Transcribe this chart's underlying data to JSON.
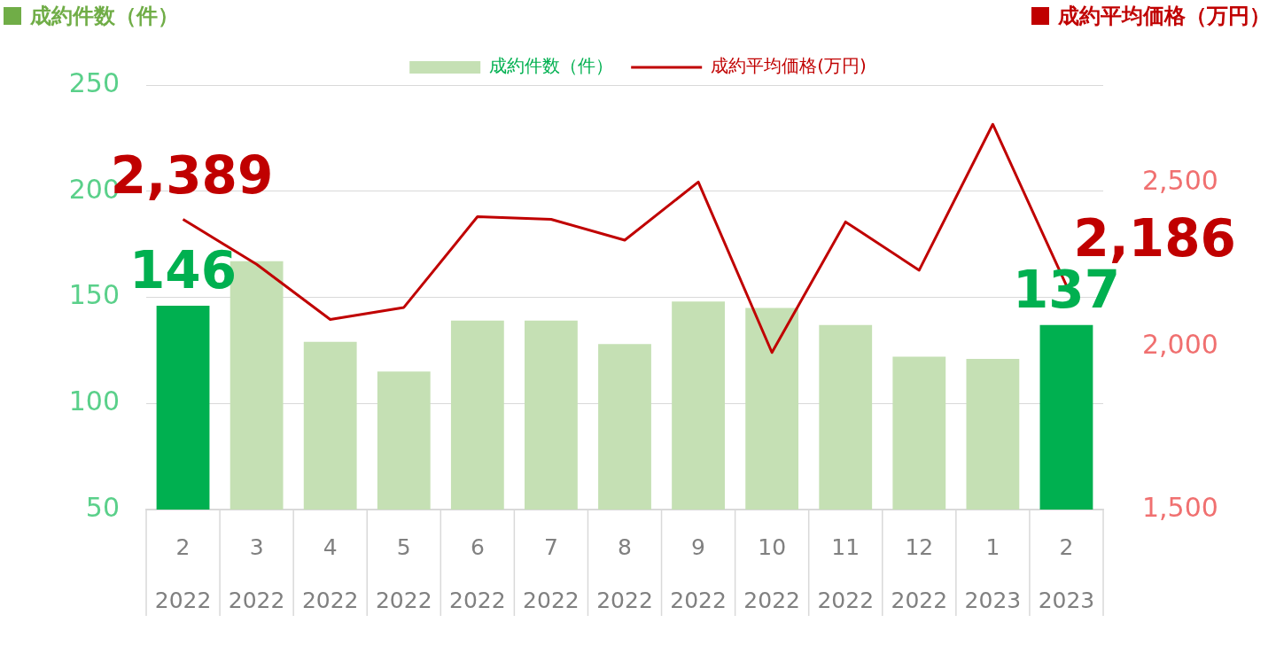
{
  "chart_data": {
    "type": "bar",
    "ylabel": "成約件数（件）",
    "y2label": "成約平均価格（万円）",
    "categories": [
      "2\n2022",
      "3\n2022",
      "4\n2022",
      "5\n2022",
      "6\n2022",
      "7\n2022",
      "8\n2022",
      "9\n2022",
      "10\n2022",
      "11\n2022",
      "12\n2022",
      "1\n2023",
      "2\n2023"
    ],
    "series": [
      {
        "name": "成約件数（件）",
        "type": "bar",
        "color": "#c5e0b4",
        "colors": [
          "#00b050",
          "#c5e0b4",
          "#c5e0b4",
          "#c5e0b4",
          "#c5e0b4",
          "#c5e0b4",
          "#c5e0b4",
          "#c5e0b4",
          "#c5e0b4",
          "#c5e0b4",
          "#c5e0b4",
          "#c5e0b4",
          "#00b050"
        ],
        "values": [
          146,
          167,
          129,
          115,
          139,
          139,
          128,
          148,
          145,
          137,
          122,
          121,
          137
        ],
        "value_labels": [
          "146",
          null,
          null,
          null,
          null,
          null,
          null,
          null,
          null,
          null,
          null,
          null,
          "137"
        ]
      },
      {
        "name": "成約平均価格(万円)",
        "type": "line",
        "axis": "y2",
        "color": "#c00000",
        "values": [
          2389,
          2251,
          2082,
          2119,
          2397,
          2389,
          2325,
          2503,
          1981,
          2381,
          2233,
          2680,
          2186
        ],
        "value_labels": [
          "2,389",
          null,
          null,
          null,
          null,
          null,
          null,
          null,
          null,
          null,
          null,
          null,
          "2,186"
        ]
      }
    ],
    "ylim": [
      50,
      250
    ],
    "yticks": [
      50,
      100,
      150,
      200,
      250
    ],
    "y2lim": [
      1500,
      2800
    ],
    "y2ticks": [
      {
        "value": 1500,
        "label": "1,500"
      },
      {
        "value": 2000,
        "label": "2,000"
      },
      {
        "value": 2500,
        "label": "2,500"
      }
    ],
    "grid": "y",
    "legend": "top",
    "marker": "none",
    "line_style": "solid"
  }
}
